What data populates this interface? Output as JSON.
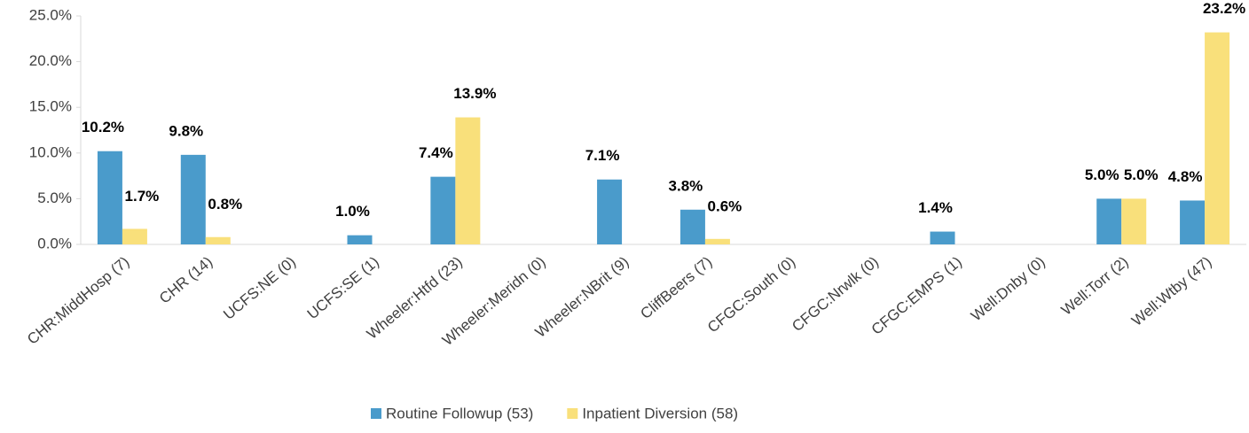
{
  "chart_data": {
    "type": "bar",
    "categories": [
      "CHR:MiddHosp (7)",
      "CHR (14)",
      "UCFS:NE (0)",
      "UCFS:SE (1)",
      "Wheeler:Htfd (23)",
      "Wheeler:Meridn (0)",
      "Wheeler:NBrit (9)",
      "CliffBeers (7)",
      "CFGC:South (0)",
      "CFGC:Nrwlk (0)",
      "CFGC:EMPS (1)",
      "Well:Dnby (0)",
      "Well:Torr (2)",
      "Well:Wtby (47)"
    ],
    "series": [
      {
        "name": "Routine Followup (53)",
        "color": "#4a9bcb",
        "values": [
          10.2,
          9.8,
          0,
          1.0,
          7.4,
          0,
          7.1,
          3.8,
          0,
          0,
          1.4,
          0,
          5.0,
          4.8
        ],
        "value_labels": [
          "10.2%",
          "9.8%",
          null,
          "1.0%",
          "7.4%",
          null,
          "7.1%",
          "3.8%",
          null,
          null,
          "1.4%",
          null,
          "5.0%",
          "4.8%"
        ]
      },
      {
        "name": "Inpatient Diversion (58)",
        "color": "#f9e07b",
        "values": [
          1.7,
          0.8,
          0,
          0,
          13.9,
          0,
          0,
          0.6,
          0,
          0,
          0,
          0,
          5.0,
          23.2
        ],
        "value_labels": [
          "1.7%",
          "0.8%",
          null,
          null,
          "13.9%",
          null,
          null,
          "0.6%",
          null,
          null,
          null,
          null,
          "5.0%",
          "23.2%"
        ]
      }
    ],
    "ylim": [
      0,
      25
    ],
    "yticks": [
      {
        "value": 0,
        "label": "0.0%"
      },
      {
        "value": 5,
        "label": "5.0%"
      },
      {
        "value": 10,
        "label": "10.0%"
      },
      {
        "value": 15,
        "label": "15.0%"
      },
      {
        "value": 20,
        "label": "20.0%"
      },
      {
        "value": 25,
        "label": "25.0%"
      }
    ],
    "grid": false,
    "legend": "bottom"
  }
}
